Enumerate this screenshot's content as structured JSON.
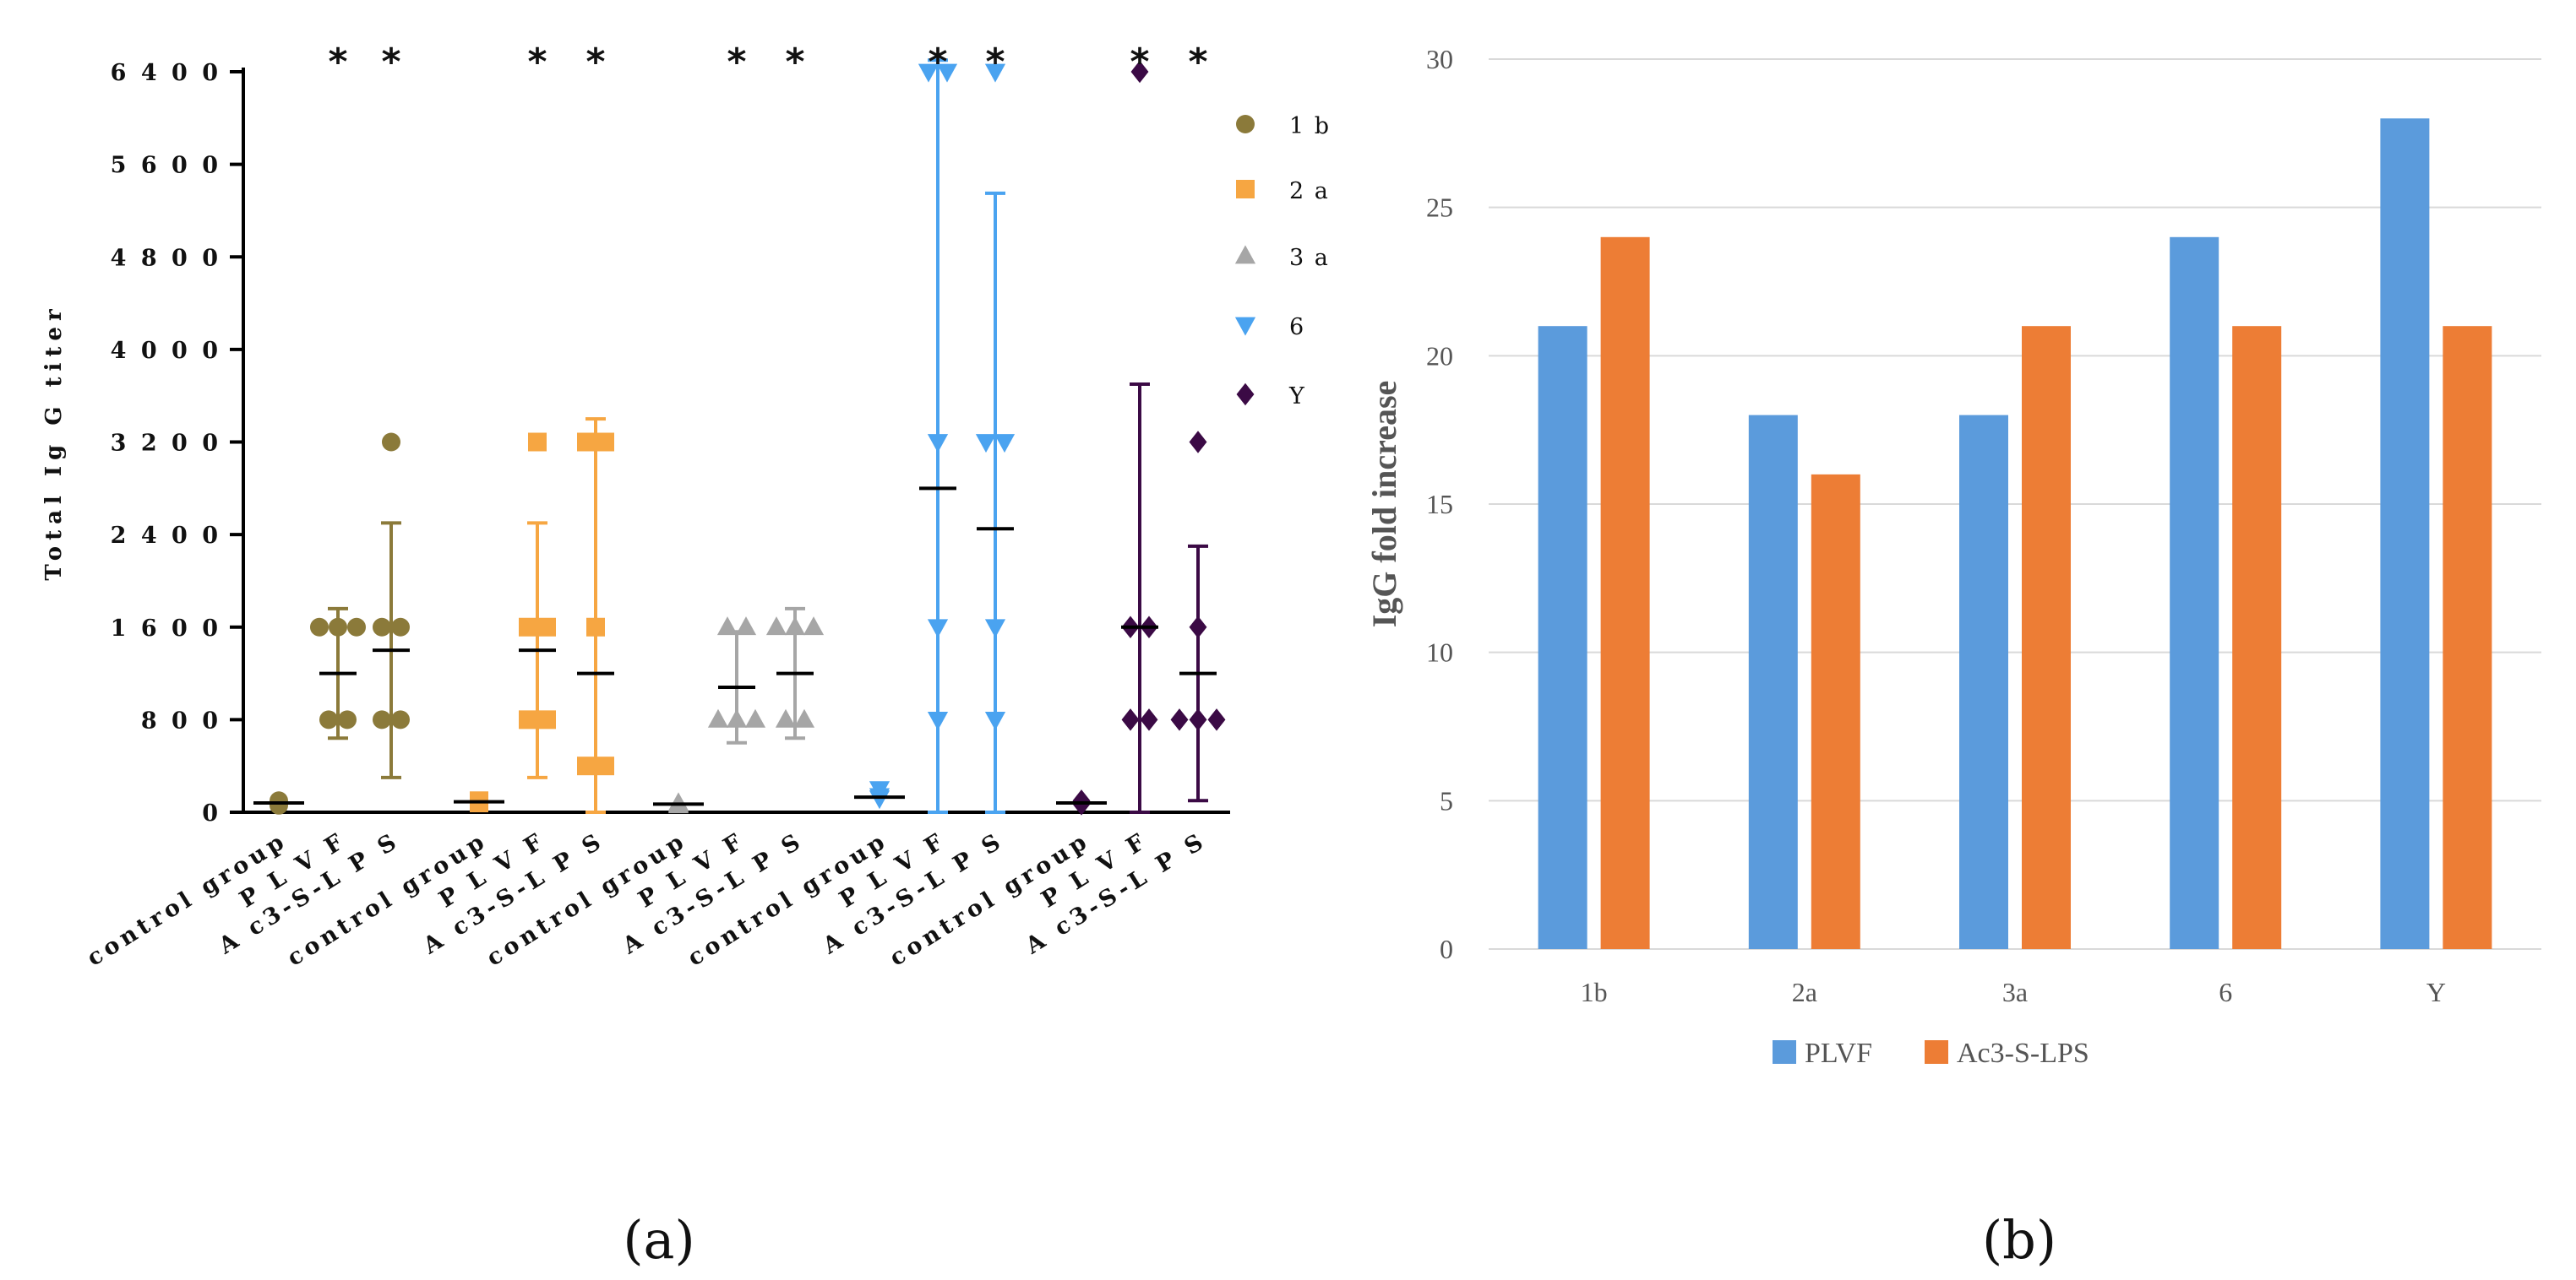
{
  "panels": {
    "a": {
      "label": "(a)"
    },
    "b": {
      "label": "(b)"
    }
  },
  "chart_data": [
    {
      "panel": "(a)",
      "type": "scatter",
      "ylabel": "Total Ig G titer",
      "ylim": [
        0,
        6500
      ],
      "yticks": [
        0,
        800,
        1600,
        2400,
        3200,
        4000,
        4800,
        5600,
        6400
      ],
      "ytick_labels": [
        "0",
        "8 0 0",
        "1 6 0 0",
        "2 4 0 0",
        "3 2 0 0",
        "4 0 0 0",
        "4 8 0 0",
        "5 6 0 0",
        "6 4 0 0"
      ],
      "legend_position": "top-right",
      "significance_marker": "*",
      "series": [
        {
          "name": "1 b",
          "color": "#8b7a3a",
          "marker": "circle",
          "groups": [
            {
              "label": "control group",
              "points": [
                100,
                60,
                80
              ],
              "mean": 80,
              "sd": 20,
              "star": false
            },
            {
              "label": "P L V F",
              "points": [
                800,
                800,
                1600,
                1600,
                1600
              ],
              "mean": 1200,
              "sd": 560,
              "star": true
            },
            {
              "label": "A c3-S-L P S",
              "points": [
                800,
                800,
                1600,
                1600,
                3200
              ],
              "mean": 1400,
              "sd": 1100,
              "star": true
            }
          ]
        },
        {
          "name": "2 a",
          "color": "#f6a642",
          "marker": "square",
          "groups": [
            {
              "label": "control group",
              "points": [
                100,
                80,
                90
              ],
              "mean": 90,
              "sd": 10,
              "star": false
            },
            {
              "label": "P L V F",
              "points": [
                800,
                800,
                1600,
                1600,
                3200
              ],
              "mean": 1400,
              "sd": 1100,
              "star": true
            },
            {
              "label": "A c3-S-L P S",
              "points": [
                400,
                400,
                1600,
                3200,
                3200
              ],
              "mean": 1200,
              "sd": 2200,
              "star": true
            }
          ]
        },
        {
          "name": "3 a",
          "color": "#a6a6a6",
          "marker": "triangle-up",
          "groups": [
            {
              "label": "control group",
              "points": [
                80,
                60,
                70
              ],
              "mean": 70,
              "sd": 10,
              "star": false
            },
            {
              "label": "P L V F",
              "points": [
                800,
                800,
                800,
                1600,
                1600
              ],
              "mean": 1080,
              "sd": 480,
              "star": true
            },
            {
              "label": "A c3-S-L P S",
              "points": [
                800,
                800,
                1600,
                1600,
                1600
              ],
              "mean": 1200,
              "sd": 560,
              "star": true
            }
          ]
        },
        {
          "name": "6",
          "color": "#4aa3f0",
          "marker": "triangle-down",
          "groups": [
            {
              "label": "control group",
              "points": [
                200,
                120,
                140
              ],
              "mean": 130,
              "sd": 20,
              "star": false
            },
            {
              "label": "P L V F",
              "points": [
                800,
                1600,
                3200,
                6400,
                6400
              ],
              "mean": 2800,
              "sd": 3700,
              "star": true
            },
            {
              "label": "A c3-S-L P S",
              "points": [
                800,
                1600,
                3200,
                3200,
                6400
              ],
              "mean": 2450,
              "sd": 2900,
              "star": true
            }
          ]
        },
        {
          "name": "Y",
          "color": "#3b0a45",
          "marker": "diamond",
          "groups": [
            {
              "label": "control group",
              "points": [
                100,
                70,
                80
              ],
              "mean": 80,
              "sd": 10,
              "star": false
            },
            {
              "label": "P L V F",
              "points": [
                800,
                800,
                1600,
                1600,
                6400
              ],
              "mean": 1600,
              "sd": 2100,
              "star": true
            },
            {
              "label": "A c3-S-L P S",
              "points": [
                800,
                800,
                800,
                1600,
                3200
              ],
              "mean": 1200,
              "sd": 1100,
              "star": true
            }
          ]
        }
      ]
    },
    {
      "panel": "(b)",
      "type": "bar",
      "ylabel": "IgG fold increase",
      "xlabel": "",
      "ylim": [
        0,
        30
      ],
      "yticks": [
        0,
        5,
        10,
        15,
        20,
        25,
        30
      ],
      "grid": true,
      "categories": [
        "1b",
        "2a",
        "3a",
        "6",
        "Y"
      ],
      "series": [
        {
          "name": "PLVF",
          "color": "#5b9bdc",
          "values": [
            21,
            18,
            18,
            24,
            28
          ]
        },
        {
          "name": "Ac3-S-LPS",
          "color": "#ed7d35",
          "values": [
            24,
            16,
            21,
            21,
            21
          ]
        }
      ],
      "legend_position": "bottom"
    }
  ]
}
